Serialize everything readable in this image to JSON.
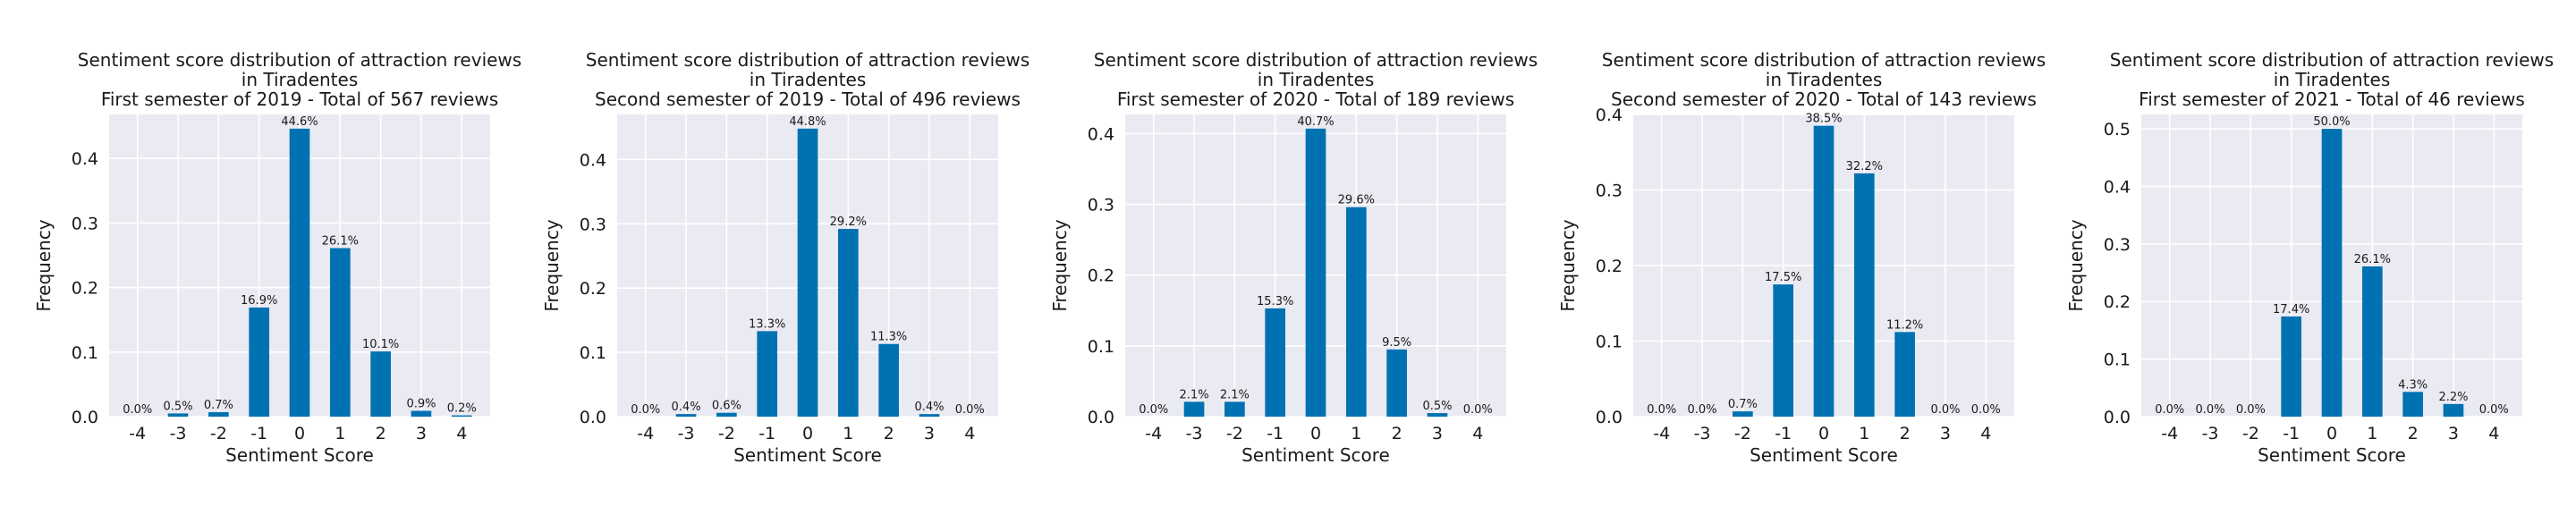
{
  "chart_data": [
    {
      "type": "bar",
      "title": [
        "Sentiment score distribution of attraction reviews",
        "in Tiradentes",
        "First semester of 2019 - Total of 567 reviews"
      ],
      "xlabel": "Sentiment Score",
      "ylabel": "Frequency",
      "categories": [
        "-4",
        "-3",
        "-2",
        "-1",
        "0",
        "1",
        "2",
        "3",
        "4"
      ],
      "values": [
        0.0,
        0.005,
        0.007,
        0.169,
        0.446,
        0.261,
        0.101,
        0.009,
        0.002
      ],
      "labels": [
        "0.0%",
        "0.5%",
        "0.7%",
        "16.9%",
        "44.6%",
        "26.1%",
        "10.1%",
        "0.9%",
        "0.2%"
      ],
      "yticks": [
        "0.0",
        "0.1",
        "0.2",
        "0.3",
        "0.4"
      ],
      "ytick_values": [
        0,
        0.1,
        0.2,
        0.3,
        0.4
      ],
      "ylim": [
        0,
        0.468
      ],
      "grid": true,
      "color": "#0072b2"
    },
    {
      "type": "bar",
      "title": [
        "Sentiment score distribution of attraction reviews",
        "in Tiradentes",
        "Second semester of 2019 - Total of 496 reviews"
      ],
      "xlabel": "Sentiment Score",
      "ylabel": "Frequency",
      "categories": [
        "-4",
        "-3",
        "-2",
        "-1",
        "0",
        "1",
        "2",
        "3",
        "4"
      ],
      "values": [
        0.0,
        0.004,
        0.006,
        0.133,
        0.448,
        0.292,
        0.113,
        0.004,
        0.0
      ],
      "labels": [
        "0.0%",
        "0.4%",
        "0.6%",
        "13.3%",
        "44.8%",
        "29.2%",
        "11.3%",
        "0.4%",
        "0.0%"
      ],
      "yticks": [
        "0.0",
        "0.1",
        "0.2",
        "0.3",
        "0.4"
      ],
      "ytick_values": [
        0,
        0.1,
        0.2,
        0.3,
        0.4
      ],
      "ylim": [
        0,
        0.47
      ],
      "grid": true,
      "color": "#0072b2"
    },
    {
      "type": "bar",
      "title": [
        "Sentiment score distribution of attraction reviews",
        "in Tiradentes",
        "First semester of 2020 - Total of 189 reviews"
      ],
      "xlabel": "Sentiment Score",
      "ylabel": "Frequency",
      "categories": [
        "-4",
        "-3",
        "-2",
        "-1",
        "0",
        "1",
        "2",
        "3",
        "4"
      ],
      "values": [
        0.0,
        0.021,
        0.021,
        0.153,
        0.407,
        0.296,
        0.095,
        0.005,
        0.0
      ],
      "labels": [
        "0.0%",
        "2.1%",
        "2.1%",
        "15.3%",
        "40.7%",
        "29.6%",
        "9.5%",
        "0.5%",
        "0.0%"
      ],
      "yticks": [
        "0.0",
        "0.1",
        "0.2",
        "0.3",
        "0.4"
      ],
      "ytick_values": [
        0,
        0.1,
        0.2,
        0.3,
        0.4
      ],
      "ylim": [
        0,
        0.427
      ],
      "grid": true,
      "color": "#0072b2"
    },
    {
      "type": "bar",
      "title": [
        "Sentiment score distribution of attraction reviews",
        "in Tiradentes",
        "Second semester of 2020 - Total of 143 reviews"
      ],
      "xlabel": "Sentiment Score",
      "ylabel": "Frequency",
      "categories": [
        "-4",
        "-3",
        "-2",
        "-1",
        "0",
        "1",
        "2",
        "3",
        "4"
      ],
      "values": [
        0.0,
        0.0,
        0.007,
        0.175,
        0.385,
        0.322,
        0.112,
        0.0,
        0.0
      ],
      "labels": [
        "0.0%",
        "0.0%",
        "0.7%",
        "17.5%",
        "38.5%",
        "32.2%",
        "11.2%",
        "0.0%",
        "0.0%"
      ],
      "yticks": [
        "0.0",
        "0.1",
        "0.2",
        "0.3",
        "0.4"
      ],
      "ytick_values": [
        0,
        0.1,
        0.2,
        0.3,
        0.4
      ],
      "ylim": [
        0,
        0.4
      ],
      "grid": true,
      "color": "#0072b2"
    },
    {
      "type": "bar",
      "title": [
        "Sentiment score distribution of attraction reviews",
        "in Tiradentes",
        "First semester of 2021 - Total of 46 reviews"
      ],
      "xlabel": "Sentiment Score",
      "ylabel": "Frequency",
      "categories": [
        "-4",
        "-3",
        "-2",
        "-1",
        "0",
        "1",
        "2",
        "3",
        "4"
      ],
      "values": [
        0.0,
        0.0,
        0.0,
        0.174,
        0.5,
        0.261,
        0.043,
        0.022,
        0.0
      ],
      "labels": [
        "0.0%",
        "0.0%",
        "0.0%",
        "17.4%",
        "50.0%",
        "26.1%",
        "4.3%",
        "2.2%",
        "0.0%"
      ],
      "yticks": [
        "0.0",
        "0.1",
        "0.2",
        "0.3",
        "0.4",
        "0.5"
      ],
      "ytick_values": [
        0,
        0.1,
        0.2,
        0.3,
        0.4,
        0.5
      ],
      "ylim": [
        0,
        0.525
      ],
      "grid": true,
      "color": "#0072b2"
    }
  ]
}
